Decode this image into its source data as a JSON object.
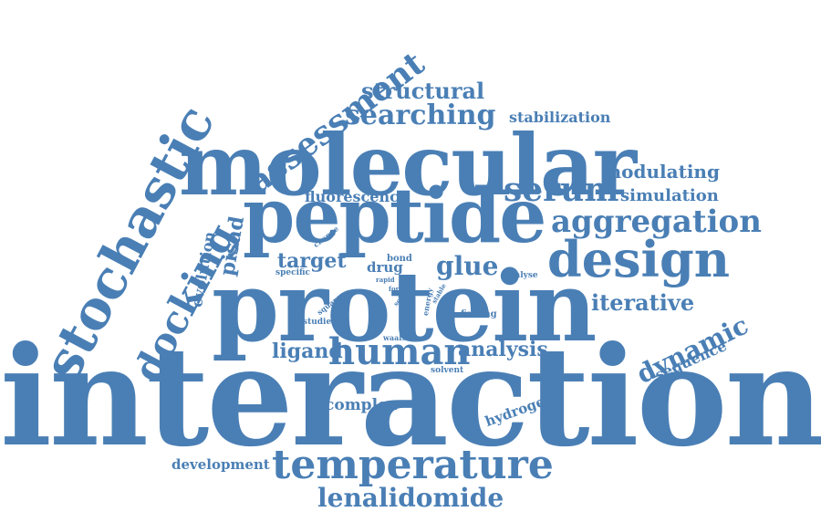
{
  "color": "#4a7fb5",
  "background": "#ffffff",
  "words": {
    "interaction": "interaction",
    "protein": "protein",
    "molecular": "molecular",
    "peptide": "peptide",
    "stochastic": "stochastic",
    "assessment": "assessment",
    "docking": "docking",
    "human": "human",
    "temperature": "temperature",
    "design": "design",
    "aggregation": "aggregation",
    "serum": "serum",
    "searching": "searching",
    "structural": "structural",
    "lenalidomide": "lenalidomide",
    "dynamic": "dynamic",
    "glue": "glue",
    "iterative": "iterative",
    "analysis": "analysis",
    "ligand": "ligand",
    "target": "target",
    "pisad": "pisad",
    "evolution": "evolution",
    "modulating": "modulating",
    "simulation": "simulation",
    "stabilization": "stabilization",
    "fluorescence": "fluorescence",
    "sequence": "sequence",
    "complex": "complex",
    "hydrogen": "hydrogen",
    "development": "development",
    "drug": "drug",
    "finding": "finding",
    "bond": "bond",
    "specific": "specific",
    "change": "change",
    "studies": "studies",
    "square": "square",
    "waals": "waals",
    "solvent": "solvent",
    "analyse": "analyse",
    "rapid": "rapid",
    "force": "force",
    "self": "self",
    "energy": "energy",
    "stable": "stable",
    "cool": "cool"
  }
}
